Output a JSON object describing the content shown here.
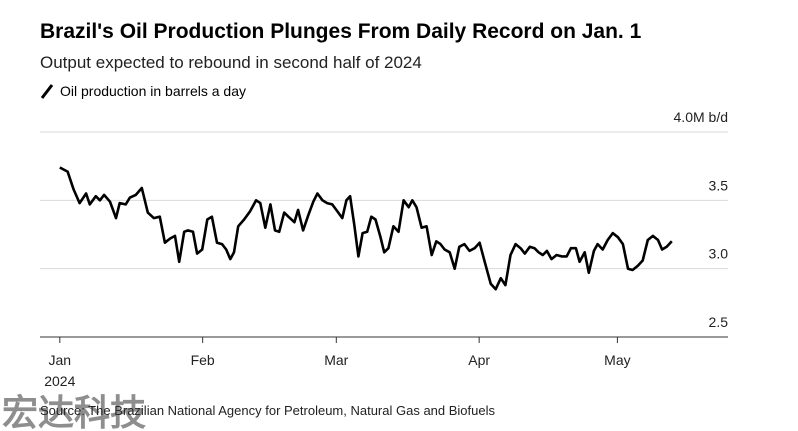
{
  "chart_data": {
    "type": "line",
    "title": "Brazil's Oil Production Plunges From Daily Record on Jan. 1",
    "subtitle": "Output expected to rebound in second half of 2024",
    "source": "Source: The Brazilian National Agency for Petroleum, Natural Gas and Biofuels",
    "watermark": "宏达科技",
    "xtick_sublabel": "2024",
    "x": [
      0,
      1.7,
      3.0,
      4.3,
      5.7,
      6.5,
      7.8,
      8.7,
      9.6,
      10.9,
      12.2,
      13.0,
      14.3,
      15.2,
      16.5,
      17.8,
      19.1,
      20.4,
      21.7,
      22.8,
      23.9,
      25.0,
      25.9,
      27.0,
      27.8,
      28.9,
      29.8,
      30.9,
      32.0,
      33.0,
      34.1,
      35.2,
      36.1,
      37.0,
      37.8,
      38.7,
      40.0,
      41.3,
      42.6,
      43.5,
      44.6,
      45.7,
      46.7,
      47.6,
      48.7,
      49.6,
      50.9,
      51.7,
      52.8,
      53.9,
      55.0,
      55.9,
      57.0,
      58.0,
      59.1,
      60.0,
      61.3,
      62.2,
      63.0,
      63.9,
      64.8,
      65.7,
      66.7,
      67.6,
      68.5,
      69.6,
      70.4,
      71.3,
      72.4,
      73.5,
      74.6,
      75.7,
      76.5,
      77.4,
      78.5,
      79.6,
      80.7,
      81.7,
      82.6,
      83.5,
      84.6,
      85.7,
      86.7,
      87.8,
      88.9,
      90.0,
      91.1,
      92.2,
      93.5,
      94.6,
      95.7,
      96.7,
      97.8,
      98.9,
      100.0,
      100.9,
      102.0,
      103.0,
      103.9,
      104.8,
      105.7,
      106.7,
      107.8,
      108.9,
      110.0,
      110.9,
      112.0,
      112.8,
      113.9,
      114.8,
      115.9,
      116.7,
      117.8,
      118.9,
      120.0,
      121.1,
      122.2,
      123.3,
      124.3,
      125.4,
      126.5,
      127.6,
      128.7,
      129.8,
      130.7,
      131.7,
      132.8
    ],
    "series": [
      {
        "name": "Oil production in barrels a day",
        "color": "#000000",
        "values": [
          3.74,
          3.71,
          3.58,
          3.48,
          3.55,
          3.47,
          3.53,
          3.5,
          3.54,
          3.49,
          3.37,
          3.48,
          3.47,
          3.52,
          3.54,
          3.59,
          3.41,
          3.37,
          3.38,
          3.19,
          3.22,
          3.24,
          3.05,
          3.27,
          3.28,
          3.27,
          3.11,
          3.14,
          3.36,
          3.38,
          3.19,
          3.18,
          3.14,
          3.07,
          3.12,
          3.31,
          3.36,
          3.42,
          3.5,
          3.48,
          3.3,
          3.47,
          3.28,
          3.27,
          3.41,
          3.38,
          3.34,
          3.43,
          3.28,
          3.39,
          3.49,
          3.55,
          3.5,
          3.48,
          3.47,
          3.43,
          3.37,
          3.5,
          3.53,
          3.32,
          3.09,
          3.26,
          3.27,
          3.38,
          3.36,
          3.23,
          3.12,
          3.15,
          3.31,
          3.27,
          3.5,
          3.45,
          3.5,
          3.45,
          3.3,
          3.31,
          3.1,
          3.2,
          3.18,
          3.14,
          3.12,
          3.0,
          3.16,
          3.18,
          3.13,
          3.15,
          3.19,
          3.05,
          2.89,
          2.85,
          2.93,
          2.88,
          3.1,
          3.18,
          3.15,
          3.11,
          3.16,
          3.15,
          3.12,
          3.1,
          3.13,
          3.07,
          3.1,
          3.09,
          3.09,
          3.15,
          3.15,
          3.05,
          3.12,
          2.97,
          3.13,
          3.18,
          3.14,
          3.21,
          3.26,
          3.23,
          3.18,
          3.0,
          2.99,
          3.02,
          3.06,
          3.21,
          3.24,
          3.21,
          3.14,
          3.16,
          3.2
        ]
      }
    ],
    "xlim": [
      -4.3,
      145
    ],
    "xticks": [
      {
        "value": 0,
        "label": "Jan"
      },
      {
        "value": 31,
        "label": "Feb"
      },
      {
        "value": 60,
        "label": "Mar"
      },
      {
        "value": 91,
        "label": "Apr"
      },
      {
        "value": 121,
        "label": "May"
      }
    ],
    "ylim": [
      2.5,
      4.0
    ],
    "yticks": [
      2.5,
      {
        "value": 3,
        "label": "3.0"
      },
      3.5,
      {
        "value": 4,
        "label": "4.0M b/d"
      }
    ],
    "grid": true
  }
}
